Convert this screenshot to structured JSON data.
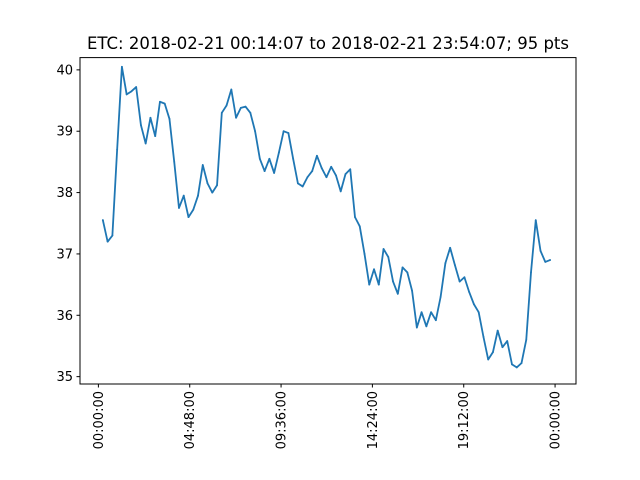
{
  "chart_data": {
    "type": "line",
    "title": "ETC: 2018-02-21 00:14:07 to 2018-02-21 23:54:07; 95 pts",
    "xlabel": "",
    "ylabel": "",
    "x_unit": "time of day (HH:MM:SS)",
    "xlim": [
      "2018-02-20 23:02:00",
      "2018-02-22 01:06:00"
    ],
    "ylim": [
      34.88,
      40.2
    ],
    "x_ticks": [
      "00:00:00",
      "04:48:00",
      "09:36:00",
      "14:24:00",
      "19:12:00",
      "00:00:00"
    ],
    "x_tick_times": [
      "2018-02-21 00:00:00",
      "2018-02-21 04:48:00",
      "2018-02-21 09:36:00",
      "2018-02-21 14:24:00",
      "2018-02-21 19:12:00",
      "2018-02-22 00:00:00"
    ],
    "y_ticks": [
      35,
      36,
      37,
      38,
      39,
      40
    ],
    "grid": false,
    "legend": "none",
    "color": "#1f77b4",
    "series": [
      {
        "start": "2018-02-21 00:14:07",
        "end": "2018-02-21 23:54:07",
        "interval_minutes": 15,
        "values": [
          37.55,
          37.2,
          37.3,
          38.7,
          40.05,
          39.6,
          39.65,
          39.72,
          39.1,
          38.8,
          39.22,
          38.92,
          39.48,
          39.45,
          39.2,
          38.5,
          37.75,
          37.95,
          37.6,
          37.72,
          37.95,
          38.45,
          38.15,
          38.0,
          38.12,
          39.3,
          39.42,
          39.68,
          39.22,
          39.38,
          39.4,
          39.3,
          39.0,
          38.55,
          38.35,
          38.55,
          38.32,
          38.65,
          39.0,
          38.97,
          38.55,
          38.15,
          38.1,
          38.25,
          38.35,
          38.6,
          38.4,
          38.25,
          38.42,
          38.28,
          38.02,
          38.3,
          38.38,
          37.6,
          37.45,
          37.0,
          36.5,
          36.75,
          36.5,
          37.08,
          36.95,
          36.55,
          36.35,
          36.78,
          36.7,
          36.4,
          35.8,
          36.05,
          35.82,
          36.05,
          35.92,
          36.3,
          36.85,
          37.1,
          36.82,
          36.55,
          36.62,
          36.38,
          36.18,
          36.05,
          35.65,
          35.28,
          35.4,
          35.75,
          35.48,
          35.58,
          35.2,
          35.15,
          35.22,
          35.6,
          36.7,
          37.55,
          37.05,
          36.87,
          36.9
        ]
      }
    ]
  }
}
